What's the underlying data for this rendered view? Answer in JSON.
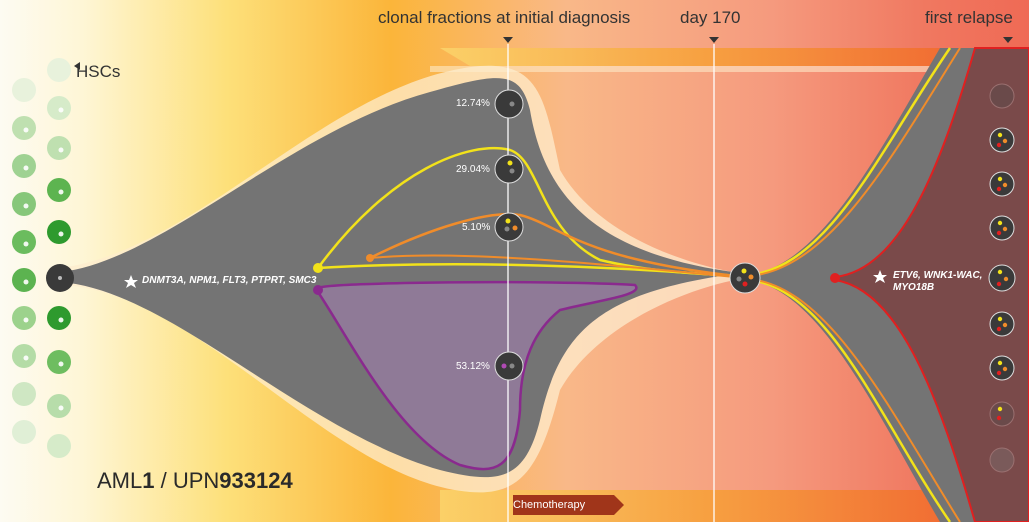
{
  "header": {
    "diagnosis_label": "clonal fractions at initial diagnosis",
    "day_label": "day 170",
    "relapse_label": "first relapse"
  },
  "hsc_label": "HSCs",
  "case": {
    "prefix": "AML",
    "number": "1",
    "sep": " / UPN",
    "upn": "933124"
  },
  "chemo_label": "Chemotherapy",
  "founding_mutations": "DNMT3A, NPM1, FLT3, PTPRT, SMC3",
  "relapse_mutations_line1": "ETV6, WNK1-WAC,",
  "relapse_mutations_line2": "MYO18B",
  "clone_fractions": [
    "12.74%",
    "29.04%",
    "5.10%",
    "53.12%"
  ],
  "colors": {
    "founding_clone": "#747474",
    "subclone_yellow": "#f2e21a",
    "subclone_orange": "#f08c2a",
    "subclone_purple": "#8a2a8e",
    "relapse_red": "#e02020",
    "hsc_green": "#3aa63a"
  }
}
